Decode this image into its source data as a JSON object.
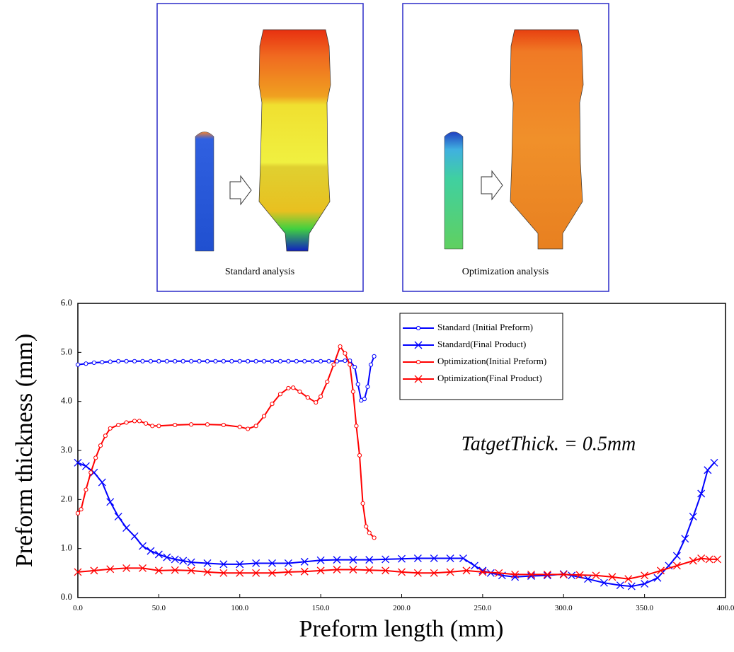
{
  "panels": [
    {
      "caption": "Standard analysis"
    },
    {
      "caption": "Optimization analysis"
    }
  ],
  "chart_data": {
    "type": "line",
    "x_label": "Preform length (mm)",
    "y_label": "Preform thickness (mm)",
    "annotation": "TatgetThick. = 0.5mm",
    "xlim": [
      0,
      400
    ],
    "ylim": [
      0,
      6
    ],
    "xticks": [
      {
        "value": 0,
        "label": "0.0"
      },
      {
        "value": 50,
        "label": "50.0"
      },
      {
        "value": 100,
        "label": "100.0"
      },
      {
        "value": 150,
        "label": "150.0"
      },
      {
        "value": 200,
        "label": "200.0"
      },
      {
        "value": 250,
        "label": "250.0"
      },
      {
        "value": 300,
        "label": "300.0"
      },
      {
        "value": 350,
        "label": "350.0"
      },
      {
        "value": 400,
        "label": "400.0"
      }
    ],
    "yticks": [
      {
        "value": 0,
        "label": "0.0"
      },
      {
        "value": 1,
        "label": "1.0"
      },
      {
        "value": 2,
        "label": "2.0"
      },
      {
        "value": 3,
        "label": "3.0"
      },
      {
        "value": 4,
        "label": "4.0"
      },
      {
        "value": 5,
        "label": "5.0"
      },
      {
        "value": 6,
        "label": "6.0"
      }
    ],
    "grid": false,
    "legend": "upper right",
    "series": [
      {
        "name": "Standard (Initial Preform)",
        "color": "#0000ff",
        "marker": "circle",
        "x": [
          0,
          5,
          10,
          15,
          20,
          25,
          30,
          35,
          40,
          45,
          50,
          55,
          60,
          65,
          70,
          75,
          80,
          85,
          90,
          95,
          100,
          105,
          110,
          115,
          120,
          125,
          130,
          135,
          140,
          145,
          150,
          155,
          160,
          165,
          168,
          171,
          173,
          175,
          177,
          179,
          181,
          183
        ],
        "values": [
          4.75,
          4.77,
          4.79,
          4.8,
          4.81,
          4.82,
          4.82,
          4.82,
          4.82,
          4.82,
          4.82,
          4.82,
          4.82,
          4.82,
          4.82,
          4.82,
          4.82,
          4.82,
          4.82,
          4.82,
          4.82,
          4.82,
          4.82,
          4.82,
          4.82,
          4.82,
          4.82,
          4.82,
          4.82,
          4.82,
          4.82,
          4.82,
          4.82,
          4.83,
          4.83,
          4.7,
          4.35,
          4.02,
          4.05,
          4.3,
          4.75,
          4.92
        ]
      },
      {
        "name": "Standard(Final Product)",
        "color": "#0000ff",
        "marker": "x",
        "x": [
          0,
          5,
          10,
          15,
          20,
          25,
          30,
          35,
          40,
          45,
          50,
          55,
          60,
          65,
          70,
          80,
          90,
          100,
          110,
          120,
          130,
          140,
          150,
          160,
          170,
          180,
          190,
          200,
          210,
          220,
          230,
          238,
          245,
          250,
          255,
          262,
          270,
          280,
          290,
          300,
          305,
          315,
          325,
          335,
          342,
          350,
          358,
          365,
          370,
          375,
          380,
          385,
          389,
          393
        ],
        "values": [
          2.75,
          2.68,
          2.55,
          2.35,
          1.95,
          1.65,
          1.42,
          1.25,
          1.05,
          0.95,
          0.88,
          0.82,
          0.78,
          0.75,
          0.72,
          0.7,
          0.68,
          0.68,
          0.7,
          0.7,
          0.7,
          0.73,
          0.76,
          0.77,
          0.77,
          0.77,
          0.78,
          0.79,
          0.8,
          0.8,
          0.8,
          0.8,
          0.65,
          0.55,
          0.5,
          0.45,
          0.42,
          0.44,
          0.45,
          0.48,
          0.45,
          0.38,
          0.3,
          0.25,
          0.23,
          0.28,
          0.4,
          0.65,
          0.85,
          1.2,
          1.65,
          2.12,
          2.6,
          2.75
        ]
      },
      {
        "name": "Optimization(Initial Preform)",
        "color": "#ff0000",
        "marker": "circle",
        "x": [
          0,
          2,
          5,
          8,
          11,
          14,
          17,
          20,
          25,
          30,
          35,
          38,
          42,
          46,
          50,
          60,
          70,
          80,
          90,
          100,
          105,
          110,
          115,
          120,
          125,
          130,
          133,
          137,
          142,
          147,
          150,
          154,
          158,
          162,
          165,
          168,
          170,
          172,
          174,
          176,
          178,
          180,
          183
        ],
        "values": [
          1.72,
          1.8,
          2.2,
          2.55,
          2.85,
          3.1,
          3.3,
          3.45,
          3.52,
          3.57,
          3.6,
          3.6,
          3.55,
          3.5,
          3.5,
          3.52,
          3.53,
          3.53,
          3.52,
          3.48,
          3.44,
          3.5,
          3.7,
          3.95,
          4.15,
          4.27,
          4.28,
          4.2,
          4.08,
          3.98,
          4.1,
          4.4,
          4.75,
          5.12,
          4.98,
          4.75,
          4.2,
          3.5,
          2.9,
          1.92,
          1.45,
          1.32,
          1.22
        ]
      },
      {
        "name": "Optimization(Final Product)",
        "color": "#ff0000",
        "marker": "x",
        "x": [
          0,
          10,
          20,
          30,
          40,
          50,
          60,
          70,
          80,
          90,
          100,
          110,
          120,
          130,
          140,
          150,
          160,
          170,
          180,
          190,
          200,
          210,
          220,
          230,
          240,
          250,
          260,
          270,
          280,
          290,
          300,
          310,
          320,
          330,
          340,
          350,
          360,
          370,
          380,
          385,
          390,
          395
        ],
        "values": [
          0.52,
          0.55,
          0.58,
          0.6,
          0.6,
          0.55,
          0.56,
          0.55,
          0.52,
          0.5,
          0.5,
          0.5,
          0.5,
          0.52,
          0.53,
          0.55,
          0.57,
          0.57,
          0.56,
          0.55,
          0.52,
          0.5,
          0.5,
          0.52,
          0.55,
          0.52,
          0.5,
          0.47,
          0.47,
          0.47,
          0.47,
          0.46,
          0.45,
          0.42,
          0.38,
          0.45,
          0.55,
          0.65,
          0.75,
          0.8,
          0.78,
          0.78
        ]
      }
    ]
  }
}
